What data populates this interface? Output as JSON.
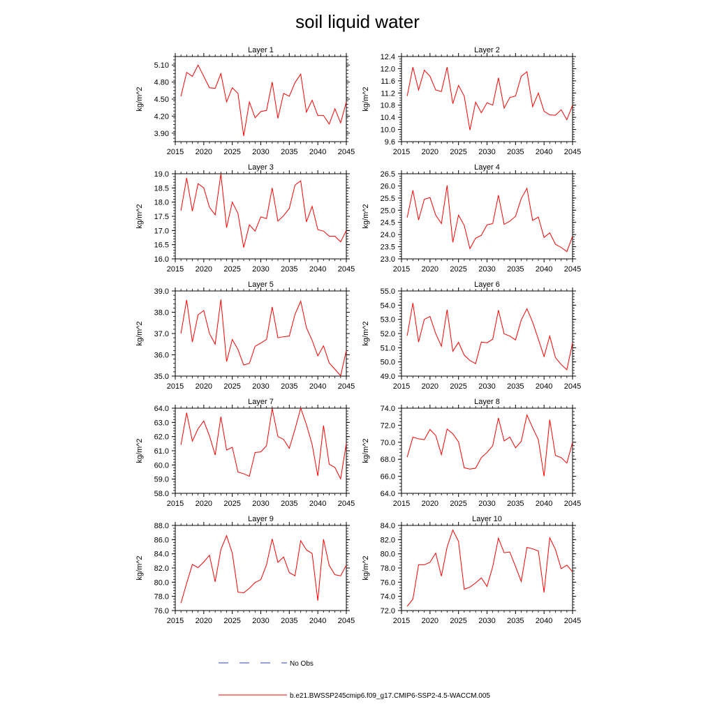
{
  "title": "soil liquid water",
  "legend": {
    "obs_label": "No Obs",
    "model_label": "b.e21.BWSSP245cmip6.f09_g17.CMIP6-SSP2-4.5-WACCM.005"
  },
  "colors": {
    "series": "#ff0000",
    "obs": "#2b3fd6",
    "axis": "#000000"
  },
  "chart_data": [
    {
      "type": "line",
      "title": "Layer 1",
      "ylabel": "kg/m^2",
      "xlim": [
        2015,
        2045
      ],
      "ylim": [
        3.75,
        5.25
      ],
      "yticks": [
        3.9,
        4.2,
        4.5,
        4.8,
        5.1
      ],
      "ytick_labels": [
        "3.90",
        "4.20",
        "4.50",
        "4.80",
        "5.10"
      ],
      "xticks": [
        2015,
        2020,
        2025,
        2030,
        2035,
        2040,
        2045
      ],
      "xtick_labels": [
        "2015",
        "2020",
        "2025",
        "2030",
        "2035",
        "2040",
        "2045"
      ],
      "x": [
        2016,
        2017,
        2018,
        2019,
        2020,
        2021,
        2022,
        2023,
        2024,
        2025,
        2026,
        2027,
        2028,
        2029,
        2030,
        2031,
        2032,
        2033,
        2034,
        2035,
        2036,
        2037,
        2038,
        2039,
        2040,
        2041,
        2042,
        2043,
        2044,
        2045
      ],
      "series": [
        {
          "values": [
            4.55,
            4.97,
            4.9,
            5.1,
            4.9,
            4.7,
            4.69,
            4.95,
            4.45,
            4.7,
            4.6,
            3.85,
            4.45,
            4.17,
            4.28,
            4.3,
            4.8,
            4.16,
            4.6,
            4.55,
            4.79,
            4.94,
            4.27,
            4.48,
            4.21,
            4.21,
            4.06,
            4.33,
            4.08,
            4.45
          ]
        }
      ]
    },
    {
      "type": "line",
      "title": "Layer 2",
      "ylabel": "kg/m^2",
      "xlim": [
        2015,
        2045
      ],
      "ylim": [
        9.6,
        12.4
      ],
      "yticks": [
        9.6,
        10.0,
        10.4,
        10.8,
        11.2,
        11.6,
        12.0,
        12.4
      ],
      "ytick_labels": [
        "9.6",
        "10.0",
        "10.4",
        "10.8",
        "11.2",
        "11.6",
        "12.0",
        "12.4"
      ],
      "xticks": [
        2015,
        2020,
        2025,
        2030,
        2035,
        2040,
        2045
      ],
      "xtick_labels": [
        "2015",
        "2020",
        "2025",
        "2030",
        "2035",
        "2040",
        "2045"
      ],
      "x": [
        2016,
        2017,
        2018,
        2019,
        2020,
        2021,
        2022,
        2023,
        2024,
        2025,
        2026,
        2027,
        2028,
        2029,
        2030,
        2031,
        2032,
        2033,
        2034,
        2035,
        2036,
        2037,
        2038,
        2039,
        2040,
        2041,
        2042,
        2043,
        2044,
        2045
      ],
      "series": [
        {
          "values": [
            11.1,
            12.05,
            11.3,
            11.95,
            11.75,
            11.3,
            11.25,
            12.05,
            10.85,
            11.45,
            11.1,
            9.98,
            10.9,
            10.55,
            10.88,
            10.8,
            11.7,
            10.7,
            11.05,
            11.1,
            11.75,
            11.9,
            10.75,
            11.2,
            10.6,
            10.48,
            10.47,
            10.65,
            10.32,
            10.8
          ]
        }
      ]
    },
    {
      "type": "line",
      "title": "Layer 3",
      "ylabel": "kg/m^2",
      "xlim": [
        2015,
        2045
      ],
      "ylim": [
        16.0,
        19.0
      ],
      "yticks": [
        16.0,
        16.5,
        17.0,
        17.5,
        18.0,
        18.5,
        19.0
      ],
      "ytick_labels": [
        "16.0",
        "16.5",
        "17.0",
        "17.5",
        "18.0",
        "18.5",
        "19.0"
      ],
      "xticks": [
        2015,
        2020,
        2025,
        2030,
        2035,
        2040,
        2045
      ],
      "xtick_labels": [
        "2015",
        "2020",
        "2025",
        "2030",
        "2035",
        "2040",
        "2045"
      ],
      "x": [
        2016,
        2017,
        2018,
        2019,
        2020,
        2021,
        2022,
        2023,
        2024,
        2025,
        2026,
        2027,
        2028,
        2029,
        2030,
        2031,
        2032,
        2033,
        2034,
        2035,
        2036,
        2037,
        2038,
        2039,
        2040,
        2041,
        2042,
        2043,
        2044,
        2045
      ],
      "series": [
        {
          "values": [
            17.7,
            18.85,
            17.68,
            18.65,
            18.5,
            17.82,
            17.55,
            19.0,
            17.1,
            18.0,
            17.6,
            16.4,
            17.2,
            16.98,
            17.48,
            17.42,
            18.5,
            17.33,
            17.52,
            17.78,
            18.6,
            18.75,
            17.3,
            17.85,
            17.03,
            16.98,
            16.8,
            16.8,
            16.6,
            17.0
          ]
        }
      ]
    },
    {
      "type": "line",
      "title": "Layer 4",
      "ylabel": "kg/m^2",
      "xlim": [
        2015,
        2045
      ],
      "ylim": [
        23.0,
        26.5
      ],
      "yticks": [
        23.0,
        23.5,
        24.0,
        24.5,
        25.0,
        25.5,
        26.0,
        26.5
      ],
      "ytick_labels": [
        "23.0",
        "23.5",
        "24.0",
        "24.5",
        "25.0",
        "25.5",
        "26.0",
        "26.5"
      ],
      "xticks": [
        2015,
        2020,
        2025,
        2030,
        2035,
        2040,
        2045
      ],
      "xtick_labels": [
        "2015",
        "2020",
        "2025",
        "2030",
        "2035",
        "2040",
        "2045"
      ],
      "x": [
        2016,
        2017,
        2018,
        2019,
        2020,
        2021,
        2022,
        2023,
        2024,
        2025,
        2026,
        2027,
        2028,
        2029,
        2030,
        2031,
        2032,
        2033,
        2034,
        2035,
        2036,
        2037,
        2038,
        2039,
        2040,
        2041,
        2042,
        2043,
        2044,
        2045
      ],
      "series": [
        {
          "values": [
            24.7,
            25.82,
            24.6,
            25.45,
            25.52,
            24.8,
            24.45,
            26.02,
            23.68,
            24.8,
            24.38,
            23.42,
            23.85,
            23.97,
            24.4,
            24.45,
            25.62,
            24.42,
            24.55,
            24.75,
            25.48,
            25.9,
            24.58,
            24.72,
            23.88,
            24.07,
            23.6,
            23.47,
            23.3,
            23.93
          ]
        }
      ]
    },
    {
      "type": "line",
      "title": "Layer 5",
      "ylabel": "kg/m^2",
      "xlim": [
        2015,
        2045
      ],
      "ylim": [
        35.0,
        39.0
      ],
      "yticks": [
        35.0,
        36.0,
        37.0,
        38.0,
        39.0
      ],
      "ytick_labels": [
        "35.0",
        "36.0",
        "37.0",
        "38.0",
        "39.0"
      ],
      "xticks": [
        2015,
        2020,
        2025,
        2030,
        2035,
        2040,
        2045
      ],
      "xtick_labels": [
        "2015",
        "2020",
        "2025",
        "2030",
        "2035",
        "2040",
        "2045"
      ],
      "x": [
        2016,
        2017,
        2018,
        2019,
        2020,
        2021,
        2022,
        2023,
        2024,
        2025,
        2026,
        2027,
        2028,
        2029,
        2030,
        2031,
        2032,
        2033,
        2034,
        2035,
        2036,
        2037,
        2038,
        2039,
        2040,
        2041,
        2042,
        2043,
        2044,
        2045
      ],
      "series": [
        {
          "values": [
            37.0,
            38.58,
            36.6,
            37.88,
            38.08,
            37.0,
            36.5,
            38.6,
            35.68,
            36.72,
            36.25,
            35.52,
            35.6,
            36.4,
            36.55,
            36.72,
            38.25,
            36.8,
            36.85,
            36.88,
            37.9,
            38.52,
            37.28,
            36.68,
            35.95,
            36.42,
            35.62,
            35.32,
            35.02,
            36.2
          ]
        }
      ]
    },
    {
      "type": "line",
      "title": "Layer 6",
      "ylabel": "kg/m^2",
      "xlim": [
        2015,
        2045
      ],
      "ylim": [
        49.0,
        55.0
      ],
      "yticks": [
        49.0,
        50.0,
        51.0,
        52.0,
        53.0,
        54.0,
        55.0
      ],
      "ytick_labels": [
        "49.0",
        "50.0",
        "51.0",
        "52.0",
        "53.0",
        "54.0",
        "55.0"
      ],
      "xticks": [
        2015,
        2020,
        2025,
        2030,
        2035,
        2040,
        2045
      ],
      "xtick_labels": [
        "2015",
        "2020",
        "2025",
        "2030",
        "2035",
        "2040",
        "2045"
      ],
      "x": [
        2016,
        2017,
        2018,
        2019,
        2020,
        2021,
        2022,
        2023,
        2024,
        2025,
        2026,
        2027,
        2028,
        2029,
        2030,
        2031,
        2032,
        2033,
        2034,
        2035,
        2036,
        2037,
        2038,
        2039,
        2040,
        2041,
        2042,
        2043,
        2044,
        2045
      ],
      "series": [
        {
          "values": [
            51.85,
            54.15,
            51.4,
            53.0,
            53.2,
            52.0,
            51.1,
            53.68,
            50.75,
            51.38,
            50.48,
            50.1,
            49.88,
            51.4,
            51.35,
            51.6,
            53.65,
            51.98,
            51.82,
            51.55,
            52.95,
            53.75,
            52.8,
            51.6,
            50.38,
            51.82,
            50.3,
            49.82,
            49.45,
            51.35
          ]
        }
      ]
    },
    {
      "type": "line",
      "title": "Layer 7",
      "ylabel": "kg/m^2",
      "xlim": [
        2015,
        2045
      ],
      "ylim": [
        58.0,
        64.0
      ],
      "yticks": [
        58.0,
        59.0,
        60.0,
        61.0,
        62.0,
        63.0,
        64.0
      ],
      "ytick_labels": [
        "58.0",
        "59.0",
        "60.0",
        "61.0",
        "62.0",
        "63.0",
        "64.0"
      ],
      "xticks": [
        2015,
        2020,
        2025,
        2030,
        2035,
        2040,
        2045
      ],
      "xtick_labels": [
        "2015",
        "2020",
        "2025",
        "2030",
        "2035",
        "2040",
        "2045"
      ],
      "x": [
        2016,
        2017,
        2018,
        2019,
        2020,
        2021,
        2022,
        2023,
        2024,
        2025,
        2026,
        2027,
        2028,
        2029,
        2030,
        2031,
        2032,
        2033,
        2034,
        2035,
        2036,
        2037,
        2038,
        2039,
        2040,
        2041,
        2042,
        2043,
        2044,
        2045
      ],
      "series": [
        {
          "values": [
            61.42,
            63.68,
            61.68,
            62.55,
            63.1,
            62.05,
            60.7,
            63.4,
            61.05,
            61.25,
            59.5,
            59.38,
            59.2,
            60.88,
            60.92,
            61.35,
            63.98,
            62.0,
            61.8,
            61.17,
            62.52,
            64.0,
            62.85,
            61.45,
            59.22,
            62.78,
            60.05,
            59.82,
            59.02,
            61.52
          ]
        }
      ]
    },
    {
      "type": "line",
      "title": "Layer 8",
      "ylabel": "kg/m^2",
      "xlim": [
        2015,
        2045
      ],
      "ylim": [
        64.0,
        74.0
      ],
      "yticks": [
        64.0,
        66.0,
        68.0,
        70.0,
        72.0,
        74.0
      ],
      "ytick_labels": [
        "64.0",
        "66.0",
        "68.0",
        "70.0",
        "72.0",
        "74.0"
      ],
      "xticks": [
        2015,
        2020,
        2025,
        2030,
        2035,
        2040,
        2045
      ],
      "xtick_labels": [
        "2015",
        "2020",
        "2025",
        "2030",
        "2035",
        "2040",
        "2045"
      ],
      "x": [
        2016,
        2017,
        2018,
        2019,
        2020,
        2021,
        2022,
        2023,
        2024,
        2025,
        2026,
        2027,
        2028,
        2029,
        2030,
        2031,
        2032,
        2033,
        2034,
        2035,
        2036,
        2037,
        2038,
        2039,
        2040,
        2041,
        2042,
        2043,
        2044,
        2045
      ],
      "series": [
        {
          "values": [
            68.25,
            70.6,
            70.4,
            70.3,
            71.5,
            70.8,
            68.55,
            71.55,
            71.0,
            70.05,
            67.0,
            66.85,
            66.95,
            68.2,
            68.8,
            69.6,
            72.85,
            70.15,
            70.6,
            69.35,
            70.1,
            73.2,
            71.7,
            70.3,
            66.0,
            72.65,
            68.45,
            68.2,
            67.55,
            70.0
          ]
        }
      ]
    },
    {
      "type": "line",
      "title": "Layer 9",
      "ylabel": "kg/m^2",
      "xlim": [
        2015,
        2045
      ],
      "ylim": [
        76.0,
        88.0
      ],
      "yticks": [
        76.0,
        78.0,
        80.0,
        82.0,
        84.0,
        86.0,
        88.0
      ],
      "ytick_labels": [
        "76.0",
        "78.0",
        "80.0",
        "82.0",
        "84.0",
        "86.0",
        "88.0"
      ],
      "xticks": [
        2015,
        2020,
        2025,
        2030,
        2035,
        2040,
        2045
      ],
      "xtick_labels": [
        "2015",
        "2020",
        "2025",
        "2030",
        "2035",
        "2040",
        "2045"
      ],
      "x": [
        2016,
        2017,
        2018,
        2019,
        2020,
        2021,
        2022,
        2023,
        2024,
        2025,
        2026,
        2027,
        2028,
        2029,
        2030,
        2031,
        2032,
        2033,
        2034,
        2035,
        2036,
        2037,
        2038,
        2039,
        2040,
        2041,
        2042,
        2043,
        2044,
        2045
      ],
      "series": [
        {
          "values": [
            77.05,
            79.85,
            82.5,
            82.05,
            82.85,
            83.8,
            80.05,
            84.6,
            86.55,
            84.1,
            78.6,
            78.5,
            79.15,
            79.95,
            80.35,
            82.45,
            86.1,
            82.8,
            83.55,
            81.35,
            80.9,
            85.85,
            84.55,
            84.05,
            77.4,
            86.05,
            82.35,
            81.05,
            80.9,
            82.4
          ]
        }
      ]
    },
    {
      "type": "line",
      "title": "Layer 10",
      "ylabel": "kg/m^2",
      "xlim": [
        2015,
        2045
      ],
      "ylim": [
        72.0,
        84.0
      ],
      "yticks": [
        72.0,
        74.0,
        76.0,
        78.0,
        80.0,
        82.0,
        84.0
      ],
      "ytick_labels": [
        "72.0",
        "74.0",
        "76.0",
        "78.0",
        "80.0",
        "82.0",
        "84.0"
      ],
      "xticks": [
        2015,
        2020,
        2025,
        2030,
        2035,
        2040,
        2045
      ],
      "xtick_labels": [
        "2015",
        "2020",
        "2025",
        "2030",
        "2035",
        "2040",
        "2045"
      ],
      "x": [
        2016,
        2017,
        2018,
        2019,
        2020,
        2021,
        2022,
        2023,
        2024,
        2025,
        2026,
        2027,
        2028,
        2029,
        2030,
        2031,
        2032,
        2033,
        2034,
        2035,
        2036,
        2037,
        2038,
        2039,
        2040,
        2041,
        2042,
        2043,
        2044,
        2045
      ],
      "series": [
        {
          "values": [
            72.6,
            73.6,
            78.45,
            78.45,
            78.8,
            80.1,
            76.85,
            80.95,
            83.35,
            81.75,
            75.0,
            75.3,
            75.9,
            76.6,
            75.4,
            78.2,
            82.2,
            80.15,
            80.25,
            78.2,
            76.1,
            80.9,
            80.7,
            80.4,
            74.55,
            82.25,
            80.6,
            77.9,
            78.4,
            77.45
          ]
        }
      ]
    }
  ]
}
